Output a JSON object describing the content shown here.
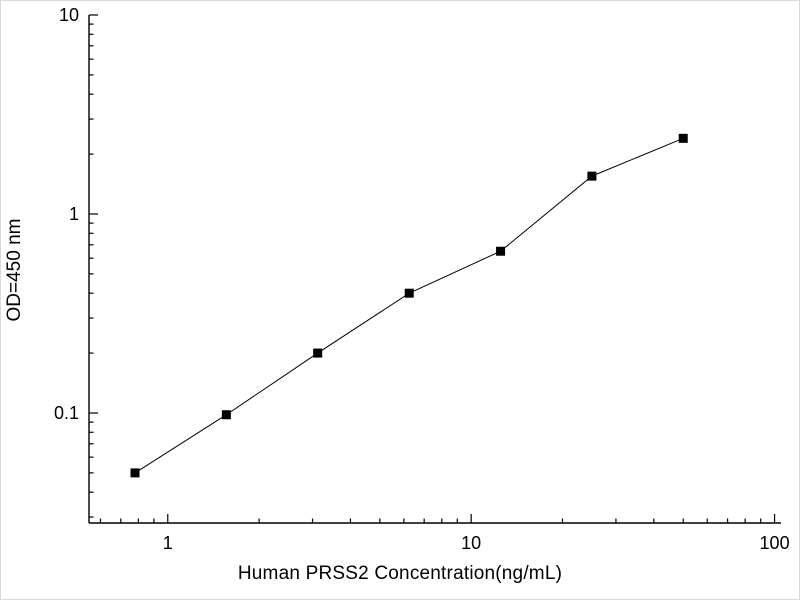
{
  "chart_data": {
    "type": "scatter",
    "title": "",
    "xlabel": "Human PRSS2 Concentration(ng/mL)",
    "ylabel": "OD=450 nm",
    "xscale": "log",
    "yscale": "log",
    "xlim": [
      0.55,
      105
    ],
    "ylim": [
      0.028,
      10
    ],
    "x": [
      0.78,
      1.56,
      3.12,
      6.25,
      12.5,
      25,
      50
    ],
    "y": [
      0.05,
      0.098,
      0.2,
      0.4,
      0.65,
      1.55,
      2.4
    ],
    "x_major_ticks": [
      1,
      10,
      100
    ],
    "x_major_tick_labels": [
      "1",
      "10",
      "100"
    ],
    "y_major_ticks": [
      0.1,
      1,
      10
    ],
    "y_major_tick_labels": [
      "0.1",
      "1",
      "10"
    ],
    "marker": "filled-black-square",
    "marker_color": "#000000",
    "line_color": "#000000",
    "axis_color": "#000000",
    "background_color": "#ffffff",
    "grid": "off",
    "legend": "none"
  }
}
